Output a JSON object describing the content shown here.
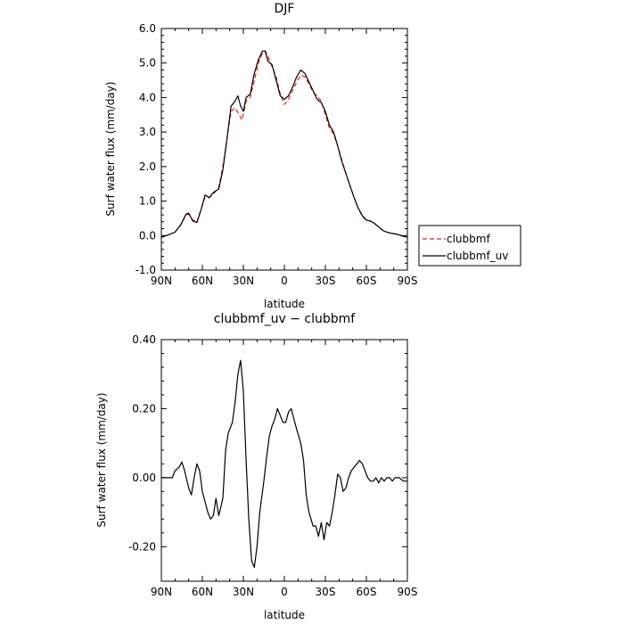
{
  "chart_data": [
    {
      "type": "line",
      "title": "DJF",
      "xlabel": "latitude",
      "ylabel": "Surf water flux (mm/day)",
      "xlim": [
        90,
        -90
      ],
      "ylim": [
        -1.0,
        6.0
      ],
      "x_ticks": [
        90,
        60,
        30,
        0,
        -30,
        -60,
        -90
      ],
      "x_ticklabels": [
        "90N",
        "60N",
        "30N",
        "0",
        "30S",
        "60S",
        "90S"
      ],
      "y_ticks": [
        -1.0,
        0.0,
        1.0,
        2.0,
        3.0,
        4.0,
        5.0,
        6.0
      ],
      "y_ticklabels": [
        "-1.0",
        "0.0",
        "1.0",
        "2.0",
        "3.0",
        "4.0",
        "5.0",
        "6.0"
      ],
      "legend_position": "outside-right",
      "series": [
        {
          "name": "clubbmf",
          "color": "#e8211c",
          "dash": "dashed",
          "points": [
            [
              90,
              -0.05
            ],
            [
              85,
              0.02
            ],
            [
              80,
              0.1
            ],
            [
              76,
              0.3
            ],
            [
              72,
              0.6
            ],
            [
              70,
              0.62
            ],
            [
              67,
              0.45
            ],
            [
              64,
              0.4
            ],
            [
              61,
              0.75
            ],
            [
              58,
              1.12
            ],
            [
              55,
              1.1
            ],
            [
              52,
              1.2
            ],
            [
              48,
              1.4
            ],
            [
              45,
              2.0
            ],
            [
              42,
              2.8
            ],
            [
              39,
              3.6
            ],
            [
              36,
              3.7
            ],
            [
              33,
              3.5
            ],
            [
              31,
              3.35
            ],
            [
              28,
              3.9
            ],
            [
              25,
              4.0
            ],
            [
              22,
              4.5
            ],
            [
              19,
              5.0
            ],
            [
              16,
              5.3
            ],
            [
              14,
              5.35
            ],
            [
              12,
              5.2
            ],
            [
              9,
              4.9
            ],
            [
              6,
              4.6
            ],
            [
              3,
              4.1
            ],
            [
              0,
              3.8
            ],
            [
              -3,
              3.95
            ],
            [
              -6,
              4.2
            ],
            [
              -9,
              4.45
            ],
            [
              -12,
              4.65
            ],
            [
              -15,
              4.6
            ],
            [
              -18,
              4.4
            ],
            [
              -21,
              4.15
            ],
            [
              -24,
              4.05
            ],
            [
              -27,
              3.9
            ],
            [
              -30,
              3.5
            ],
            [
              -33,
              3.1
            ],
            [
              -36,
              2.95
            ],
            [
              -39,
              2.6
            ],
            [
              -42,
              2.2
            ],
            [
              -45,
              1.8
            ],
            [
              -48,
              1.45
            ],
            [
              -51,
              1.1
            ],
            [
              -54,
              0.8
            ],
            [
              -57,
              0.55
            ],
            [
              -60,
              0.45
            ],
            [
              -63,
              0.42
            ],
            [
              -66,
              0.35
            ],
            [
              -69,
              0.25
            ],
            [
              -72,
              0.15
            ],
            [
              -75,
              0.1
            ],
            [
              -78,
              0.07
            ],
            [
              -81,
              0.05
            ],
            [
              -84,
              0.02
            ],
            [
              -87,
              -0.02
            ],
            [
              -90,
              -0.05
            ]
          ]
        },
        {
          "name": "clubbmf_uv",
          "color": "#000000",
          "dash": "solid",
          "points": [
            [
              90,
              -0.05
            ],
            [
              85,
              0.02
            ],
            [
              80,
              0.1
            ],
            [
              76,
              0.3
            ],
            [
              72,
              0.62
            ],
            [
              70,
              0.65
            ],
            [
              67,
              0.42
            ],
            [
              64,
              0.38
            ],
            [
              61,
              0.75
            ],
            [
              58,
              1.18
            ],
            [
              55,
              1.1
            ],
            [
              52,
              1.25
            ],
            [
              48,
              1.35
            ],
            [
              45,
              1.9
            ],
            [
              42,
              2.8
            ],
            [
              39,
              3.75
            ],
            [
              36,
              3.9
            ],
            [
              34,
              4.05
            ],
            [
              32,
              3.75
            ],
            [
              30,
              3.6
            ],
            [
              28,
              4.0
            ],
            [
              25,
              4.1
            ],
            [
              22,
              4.7
            ],
            [
              19,
              5.1
            ],
            [
              16,
              5.35
            ],
            [
              14,
              5.35
            ],
            [
              12,
              5.05
            ],
            [
              9,
              4.95
            ],
            [
              6,
              4.5
            ],
            [
              3,
              4.05
            ],
            [
              0,
              3.95
            ],
            [
              -3,
              4.05
            ],
            [
              -6,
              4.3
            ],
            [
              -9,
              4.6
            ],
            [
              -12,
              4.8
            ],
            [
              -15,
              4.7
            ],
            [
              -18,
              4.45
            ],
            [
              -21,
              4.2
            ],
            [
              -24,
              3.95
            ],
            [
              -27,
              3.85
            ],
            [
              -30,
              3.6
            ],
            [
              -33,
              3.2
            ],
            [
              -36,
              3.0
            ],
            [
              -39,
              2.6
            ],
            [
              -42,
              2.15
            ],
            [
              -45,
              1.8
            ],
            [
              -48,
              1.45
            ],
            [
              -51,
              1.1
            ],
            [
              -54,
              0.8
            ],
            [
              -57,
              0.58
            ],
            [
              -60,
              0.45
            ],
            [
              -63,
              0.42
            ],
            [
              -66,
              0.35
            ],
            [
              -69,
              0.25
            ],
            [
              -72,
              0.15
            ],
            [
              -75,
              0.1
            ],
            [
              -78,
              0.07
            ],
            [
              -81,
              0.05
            ],
            [
              -84,
              0.02
            ],
            [
              -87,
              -0.02
            ],
            [
              -90,
              -0.05
            ]
          ]
        }
      ]
    },
    {
      "type": "line",
      "title": "clubbmf_uv − clubbmf",
      "xlabel": "latitude",
      "ylabel": "Surf water flux (mm/day)",
      "xlim": [
        90,
        -90
      ],
      "ylim": [
        -0.3,
        0.4
      ],
      "x_ticks": [
        90,
        60,
        30,
        0,
        -30,
        -60,
        -90
      ],
      "x_ticklabels": [
        "90N",
        "60N",
        "30N",
        "0",
        "30S",
        "60S",
        "90S"
      ],
      "y_ticks": [
        -0.2,
        0.0,
        0.2,
        0.4
      ],
      "y_ticklabels": [
        "-0.20",
        "0.00",
        "0.20",
        "0.40"
      ],
      "series": [
        {
          "color": "#000000",
          "dash": "solid",
          "points": [
            [
              90,
              0.0
            ],
            [
              86,
              0.0
            ],
            [
              82,
              0.0
            ],
            [
              80,
              0.02
            ],
            [
              77,
              0.03
            ],
            [
              75,
              0.045
            ],
            [
              73,
              0.02
            ],
            [
              70,
              -0.03
            ],
            [
              68,
              -0.05
            ],
            [
              66,
              0.0
            ],
            [
              64,
              0.04
            ],
            [
              62,
              0.02
            ],
            [
              60,
              -0.04
            ],
            [
              58,
              -0.07
            ],
            [
              56,
              -0.1
            ],
            [
              54,
              -0.12
            ],
            [
              52,
              -0.11
            ],
            [
              50,
              -0.06
            ],
            [
              48,
              -0.11
            ],
            [
              45,
              -0.06
            ],
            [
              43,
              0.08
            ],
            [
              41,
              0.13
            ],
            [
              38,
              0.16
            ],
            [
              36,
              0.22
            ],
            [
              34,
              0.3
            ],
            [
              32,
              0.34
            ],
            [
              30,
              0.25
            ],
            [
              28,
              0.05
            ],
            [
              26,
              -0.12
            ],
            [
              24,
              -0.24
            ],
            [
              22,
              -0.26
            ],
            [
              20,
              -0.2
            ],
            [
              18,
              -0.1
            ],
            [
              15,
              -0.01
            ],
            [
              13,
              0.06
            ],
            [
              11,
              0.12
            ],
            [
              9,
              0.15
            ],
            [
              7,
              0.17
            ],
            [
              5,
              0.2
            ],
            [
              3,
              0.18
            ],
            [
              1,
              0.16
            ],
            [
              -1,
              0.16
            ],
            [
              -3,
              0.19
            ],
            [
              -5,
              0.2
            ],
            [
              -7,
              0.17
            ],
            [
              -9,
              0.14
            ],
            [
              -12,
              0.1
            ],
            [
              -14,
              0.05
            ],
            [
              -16,
              -0.05
            ],
            [
              -18,
              -0.1
            ],
            [
              -21,
              -0.14
            ],
            [
              -23,
              -0.14
            ],
            [
              -25,
              -0.17
            ],
            [
              -27,
              -0.13
            ],
            [
              -29,
              -0.18
            ],
            [
              -31,
              -0.13
            ],
            [
              -33,
              -0.14
            ],
            [
              -35,
              -0.1
            ],
            [
              -37,
              -0.05
            ],
            [
              -39,
              0.01
            ],
            [
              -41,
              0.0
            ],
            [
              -43,
              -0.04
            ],
            [
              -45,
              -0.03
            ],
            [
              -47,
              0.0
            ],
            [
              -49,
              0.02
            ],
            [
              -51,
              0.03
            ],
            [
              -53,
              0.04
            ],
            [
              -55,
              0.05
            ],
            [
              -57,
              0.04
            ],
            [
              -59,
              0.02
            ],
            [
              -61,
              0.0
            ],
            [
              -63,
              -0.01
            ],
            [
              -65,
              -0.01
            ],
            [
              -67,
              0.0
            ],
            [
              -69,
              -0.015
            ],
            [
              -71,
              0.0
            ],
            [
              -73,
              -0.01
            ],
            [
              -75,
              0.0
            ],
            [
              -77,
              0.0
            ],
            [
              -79,
              -0.01
            ],
            [
              -81,
              0.0
            ],
            [
              -84,
              0.0
            ],
            [
              -87,
              -0.01
            ],
            [
              -90,
              -0.01
            ]
          ]
        }
      ]
    }
  ]
}
